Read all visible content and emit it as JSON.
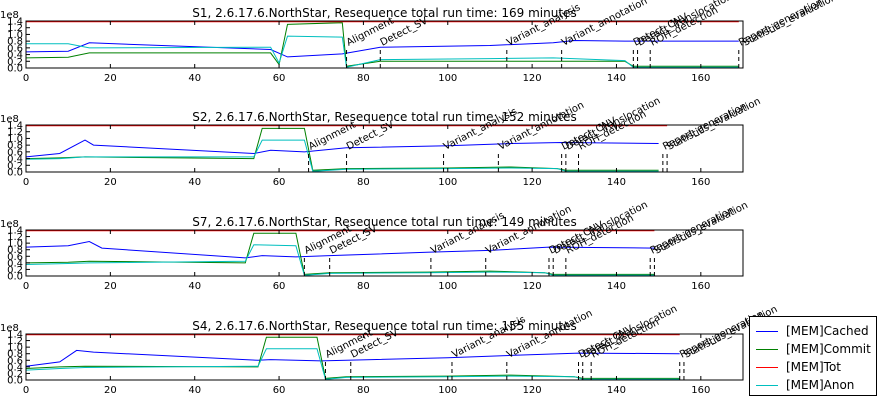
{
  "chart_data": [
    {
      "type": "line",
      "title": "S1, 2.6.17.6.NorthStar, Resequence total run time: 169 minutes",
      "xlim": [
        0,
        170
      ],
      "ylim": [
        0,
        140000000.0
      ],
      "y_multiplier": "1e8",
      "xticks": [
        "0",
        "20",
        "40",
        "60",
        "80",
        "100",
        "120",
        "140",
        "160"
      ],
      "yticks": [
        "0.0",
        "0.2",
        "0.4",
        "0.6",
        "0.8",
        "1.0",
        "1.2",
        "1.4"
      ],
      "series": [
        {
          "name": "[MEM]Cached",
          "points": [
            [
              0,
              0.48
            ],
            [
              10,
              0.5
            ],
            [
              15,
              0.75
            ],
            [
              58,
              0.55
            ],
            [
              62,
              0.33
            ],
            [
              75,
              0.42
            ],
            [
              84,
              0.62
            ],
            [
              110,
              0.67
            ],
            [
              125,
              0.75
            ],
            [
              130,
              0.82
            ],
            [
              142,
              0.8
            ],
            [
              160,
              0.8
            ],
            [
              169,
              0.8
            ]
          ]
        },
        {
          "name": "[MEM]Commit",
          "points": [
            [
              0,
              0.3
            ],
            [
              10,
              0.32
            ],
            [
              15,
              0.45
            ],
            [
              58,
              0.45
            ],
            [
              60,
              0.1
            ],
            [
              62,
              1.3
            ],
            [
              75,
              1.35
            ],
            [
              76,
              0.05
            ],
            [
              84,
              0.2
            ],
            [
              110,
              0.2
            ],
            [
              125,
              0.2
            ],
            [
              142,
              0.2
            ],
            [
              144,
              0.05
            ],
            [
              169,
              0.05
            ]
          ]
        },
        {
          "name": "[MEM]Tot",
          "points": [
            [
              0,
              1.38
            ],
            [
              169,
              1.38
            ]
          ]
        },
        {
          "name": "[MEM]Anon",
          "points": [
            [
              0,
              0.72
            ],
            [
              10,
              0.72
            ],
            [
              15,
              0.6
            ],
            [
              58,
              0.62
            ],
            [
              60,
              0.15
            ],
            [
              62,
              0.95
            ],
            [
              75,
              0.92
            ],
            [
              76,
              0.02
            ],
            [
              84,
              0.25
            ],
            [
              110,
              0.28
            ],
            [
              125,
              0.3
            ],
            [
              142,
              0.22
            ],
            [
              144,
              0.02
            ],
            [
              169,
              0.02
            ]
          ]
        }
      ],
      "annotations": [
        {
          "label": "Alignment",
          "x": 76
        },
        {
          "label": "Detect_SV",
          "x": 84
        },
        {
          "label": "Variant_analysis",
          "x": 114
        },
        {
          "label": "Variant_annotation",
          "x": 127
        },
        {
          "label": "Detect_CNV",
          "x": 144
        },
        {
          "label": "Detect_Translocation",
          "x": 145
        },
        {
          "label": "ROH_detection",
          "x": 148
        },
        {
          "label": "Report_generation",
          "x": 169
        },
        {
          "label": "Statistics_evaluation",
          "x": 170
        }
      ]
    },
    {
      "type": "line",
      "title": "S2, 2.6.17.6.NorthStar, Resequence total run time: 152 minutes",
      "xlim": [
        0,
        170
      ],
      "ylim": [
        0,
        140000000.0
      ],
      "y_multiplier": "1e8",
      "xticks": [
        "0",
        "20",
        "40",
        "60",
        "80",
        "100",
        "120",
        "140",
        "160"
      ],
      "yticks": [
        "0.0",
        "0.2",
        "0.4",
        "0.6",
        "0.8",
        "1.0",
        "1.2",
        "1.4"
      ],
      "series": [
        {
          "name": "[MEM]Cached",
          "points": [
            [
              0,
              0.45
            ],
            [
              8,
              0.55
            ],
            [
              14,
              0.95
            ],
            [
              16,
              0.8
            ],
            [
              54,
              0.55
            ],
            [
              58,
              0.65
            ],
            [
              66,
              0.6
            ],
            [
              76,
              0.72
            ],
            [
              100,
              0.78
            ],
            [
              115,
              0.85
            ],
            [
              127,
              0.88
            ],
            [
              150,
              0.85
            ]
          ]
        },
        {
          "name": "[MEM]Commit",
          "points": [
            [
              0,
              0.4
            ],
            [
              8,
              0.42
            ],
            [
              14,
              0.45
            ],
            [
              54,
              0.4
            ],
            [
              56,
              1.3
            ],
            [
              66,
              1.3
            ],
            [
              68,
              0.05
            ],
            [
              76,
              0.1
            ],
            [
              100,
              0.12
            ],
            [
              115,
              0.15
            ],
            [
              126,
              0.1
            ],
            [
              128,
              0.05
            ],
            [
              150,
              0.05
            ]
          ]
        },
        {
          "name": "[MEM]Tot",
          "points": [
            [
              0,
              1.38
            ],
            [
              152,
              1.38
            ]
          ]
        },
        {
          "name": "[MEM]Anon",
          "points": [
            [
              0,
              0.38
            ],
            [
              8,
              0.4
            ],
            [
              14,
              0.45
            ],
            [
              54,
              0.45
            ],
            [
              56,
              0.95
            ],
            [
              66,
              0.95
            ],
            [
              68,
              0.02
            ],
            [
              76,
              0.08
            ],
            [
              100,
              0.1
            ],
            [
              115,
              0.12
            ],
            [
              126,
              0.1
            ],
            [
              128,
              0.02
            ],
            [
              150,
              0.02
            ]
          ]
        }
      ],
      "annotations": [
        {
          "label": "Alignment",
          "x": 67
        },
        {
          "label": "Detect_SV",
          "x": 76
        },
        {
          "label": "Variant_analysis",
          "x": 99
        },
        {
          "label": "Variant_annotation",
          "x": 112
        },
        {
          "label": "Detect_CNV",
          "x": 127
        },
        {
          "label": "Detect_Translocation",
          "x": 128
        },
        {
          "label": "ROH_detection",
          "x": 131
        },
        {
          "label": "Report_generation",
          "x": 151
        },
        {
          "label": "Statistics_evaluation",
          "x": 152
        }
      ]
    },
    {
      "type": "line",
      "title": "S7, 2.6.17.6.NorthStar, Resequence total run time: 149 minutes",
      "xlim": [
        0,
        170
      ],
      "ylim": [
        0,
        140000000.0
      ],
      "y_multiplier": "1e8",
      "xticks": [
        "0",
        "20",
        "40",
        "60",
        "80",
        "100",
        "120",
        "140",
        "160"
      ],
      "yticks": [
        "0.0",
        "0.2",
        "0.4",
        "0.6",
        "0.8",
        "1.0",
        "1.2",
        "1.4"
      ],
      "series": [
        {
          "name": "[MEM]Cached",
          "points": [
            [
              0,
              0.88
            ],
            [
              10,
              0.92
            ],
            [
              15,
              1.05
            ],
            [
              18,
              0.85
            ],
            [
              52,
              0.55
            ],
            [
              56,
              0.62
            ],
            [
              64,
              0.58
            ],
            [
              72,
              0.62
            ],
            [
              95,
              0.72
            ],
            [
              110,
              0.78
            ],
            [
              124,
              0.88
            ],
            [
              149,
              0.85
            ]
          ]
        },
        {
          "name": "[MEM]Commit",
          "points": [
            [
              0,
              0.4
            ],
            [
              10,
              0.42
            ],
            [
              15,
              0.45
            ],
            [
              52,
              0.4
            ],
            [
              54,
              1.3
            ],
            [
              64,
              1.3
            ],
            [
              66,
              0.05
            ],
            [
              72,
              0.1
            ],
            [
              95,
              0.12
            ],
            [
              110,
              0.15
            ],
            [
              123,
              0.1
            ],
            [
              125,
              0.05
            ],
            [
              149,
              0.05
            ]
          ]
        },
        {
          "name": "[MEM]Tot",
          "points": [
            [
              0,
              1.38
            ],
            [
              149,
              1.38
            ]
          ]
        },
        {
          "name": "[MEM]Anon",
          "points": [
            [
              0,
              0.35
            ],
            [
              10,
              0.38
            ],
            [
              15,
              0.4
            ],
            [
              52,
              0.45
            ],
            [
              54,
              0.95
            ],
            [
              64,
              0.92
            ],
            [
              66,
              0.02
            ],
            [
              72,
              0.08
            ],
            [
              95,
              0.1
            ],
            [
              110,
              0.12
            ],
            [
              123,
              0.1
            ],
            [
              125,
              0.02
            ],
            [
              149,
              0.02
            ]
          ]
        }
      ],
      "annotations": [
        {
          "label": "Alignment",
          "x": 66
        },
        {
          "label": "Detect_SV",
          "x": 72
        },
        {
          "label": "Variant_analysis",
          "x": 96
        },
        {
          "label": "Variant_annotation",
          "x": 109
        },
        {
          "label": "Detect_CNV",
          "x": 124
        },
        {
          "label": "Detect_Translocation",
          "x": 125
        },
        {
          "label": "ROH_detection",
          "x": 128
        },
        {
          "label": "Report_generation",
          "x": 148
        },
        {
          "label": "Statistics_evaluation",
          "x": 149
        }
      ]
    },
    {
      "type": "line",
      "title": "S4, 2.6.17.6.NorthStar, Resequence total run time: 155 minutes",
      "xlim": [
        0,
        170
      ],
      "ylim": [
        0,
        140000000.0
      ],
      "y_multiplier": "1e8",
      "xticks": [
        "0",
        "20",
        "40",
        "60",
        "80",
        "100",
        "120",
        "140",
        "160"
      ],
      "yticks": [
        "0.0",
        "0.2",
        "0.4",
        "0.6",
        "0.8",
        "1.0",
        "1.2",
        "1.4"
      ],
      "series": [
        {
          "name": "[MEM]Cached",
          "points": [
            [
              0,
              0.42
            ],
            [
              8,
              0.55
            ],
            [
              12,
              0.9
            ],
            [
              16,
              0.85
            ],
            [
              55,
              0.6
            ],
            [
              58,
              0.62
            ],
            [
              70,
              0.58
            ],
            [
              76,
              0.6
            ],
            [
              100,
              0.68
            ],
            [
              115,
              0.75
            ],
            [
              131,
              0.82
            ],
            [
              155,
              0.8
            ]
          ]
        },
        {
          "name": "[MEM]Commit",
          "points": [
            [
              0,
              0.35
            ],
            [
              8,
              0.4
            ],
            [
              14,
              0.42
            ],
            [
              55,
              0.4
            ],
            [
              57,
              1.3
            ],
            [
              69,
              1.3
            ],
            [
              71,
              0.05
            ],
            [
              76,
              0.1
            ],
            [
              100,
              0.12
            ],
            [
              115,
              0.15
            ],
            [
              130,
              0.1
            ],
            [
              132,
              0.05
            ],
            [
              155,
              0.05
            ]
          ]
        },
        {
          "name": "[MEM]Tot",
          "points": [
            [
              0,
              1.38
            ],
            [
              155,
              1.38
            ]
          ]
        },
        {
          "name": "[MEM]Anon",
          "points": [
            [
              0,
              0.3
            ],
            [
              8,
              0.35
            ],
            [
              14,
              0.38
            ],
            [
              55,
              0.42
            ],
            [
              57,
              0.95
            ],
            [
              69,
              0.95
            ],
            [
              71,
              0.02
            ],
            [
              76,
              0.08
            ],
            [
              100,
              0.1
            ],
            [
              115,
              0.12
            ],
            [
              130,
              0.1
            ],
            [
              132,
              0.02
            ],
            [
              155,
              0.02
            ]
          ]
        }
      ],
      "annotations": [
        {
          "label": "Alignment",
          "x": 71
        },
        {
          "label": "Detect_SV",
          "x": 77
        },
        {
          "label": "Variant_analysis",
          "x": 101
        },
        {
          "label": "Variant_annotation",
          "x": 114
        },
        {
          "label": "Detect_CNV",
          "x": 131
        },
        {
          "label": "Detect_Translocation",
          "x": 132
        },
        {
          "label": "ROH_detection",
          "x": 134
        },
        {
          "label": "Report_generation",
          "x": 155
        },
        {
          "label": "Statistics_evaluation",
          "x": 156
        }
      ]
    }
  ],
  "legend": {
    "placement": "bottom-right",
    "items": [
      {
        "label": "[MEM]Cached",
        "color": "#0000ff"
      },
      {
        "label": "[MEM]Commit",
        "color": "#008000"
      },
      {
        "label": "[MEM]Tot",
        "color": "#ff0000"
      },
      {
        "label": "[MEM]Anon",
        "color": "#00bfbf"
      }
    ]
  }
}
